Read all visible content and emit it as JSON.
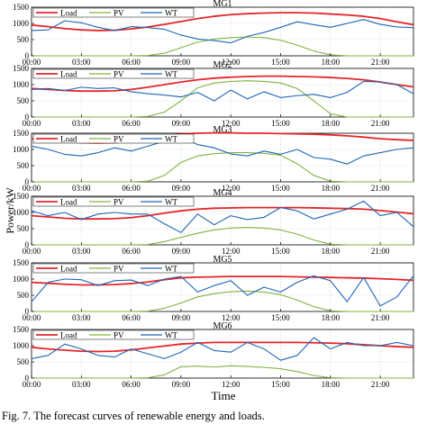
{
  "figure": {
    "ylabel": "Power/kW",
    "xlabel": "Time",
    "caption": "Fig. 7.  The forecast curves of renewable energy and loads."
  },
  "colors": {
    "Load": "#e3262a",
    "PV": "#7fb33f",
    "WT": "#1f65b5"
  },
  "chart_data": [
    {
      "type": "line",
      "title": "MG1",
      "x": [
        "00:00",
        "01:00",
        "02:00",
        "03:00",
        "04:00",
        "05:00",
        "06:00",
        "07:00",
        "08:00",
        "09:00",
        "10:00",
        "11:00",
        "12:00",
        "13:00",
        "14:00",
        "15:00",
        "16:00",
        "17:00",
        "18:00",
        "19:00",
        "20:00",
        "21:00",
        "22:00",
        "23:00"
      ],
      "xticks": [
        "00:00",
        "03:00",
        "06:00",
        "09:00",
        "12:00",
        "15:00",
        "18:00",
        "21:00"
      ],
      "ylim": [
        0,
        1500
      ],
      "yticks": [
        0,
        500,
        1000,
        1500
      ],
      "series": [
        {
          "name": "Load",
          "values": [
            950,
            900,
            840,
            800,
            780,
            790,
            830,
            890,
            970,
            1060,
            1150,
            1220,
            1270,
            1300,
            1320,
            1330,
            1330,
            1320,
            1290,
            1260,
            1220,
            1150,
            1050,
            960
          ]
        },
        {
          "name": "PV",
          "values": [
            0,
            0,
            0,
            0,
            0,
            0,
            0,
            10,
            80,
            250,
            420,
            520,
            560,
            580,
            560,
            480,
            330,
            150,
            30,
            0,
            0,
            0,
            0,
            0
          ]
        },
        {
          "name": "WT",
          "values": [
            780,
            800,
            1080,
            1020,
            880,
            780,
            900,
            870,
            820,
            640,
            520,
            470,
            400,
            600,
            720,
            880,
            1050,
            960,
            880,
            1000,
            1120,
            970,
            890,
            870
          ]
        }
      ],
      "grid": true,
      "legend": "top-left"
    },
    {
      "type": "line",
      "title": "MG2",
      "x": [
        "00:00",
        "01:00",
        "02:00",
        "03:00",
        "04:00",
        "05:00",
        "06:00",
        "07:00",
        "08:00",
        "09:00",
        "10:00",
        "11:00",
        "12:00",
        "13:00",
        "14:00",
        "15:00",
        "16:00",
        "17:00",
        "18:00",
        "19:00",
        "20:00",
        "21:00",
        "22:00",
        "23:00"
      ],
      "xticks": [
        "00:00",
        "03:00",
        "06:00",
        "09:00",
        "12:00",
        "15:00",
        "18:00",
        "21:00"
      ],
      "ylim": [
        0,
        1500
      ],
      "yticks": [
        0,
        500,
        1000,
        1500
      ],
      "series": [
        {
          "name": "Load",
          "values": [
            880,
            850,
            820,
            800,
            800,
            810,
            850,
            920,
            1000,
            1080,
            1150,
            1200,
            1230,
            1250,
            1260,
            1260,
            1250,
            1240,
            1220,
            1190,
            1150,
            1080,
            1000,
            930
          ]
        },
        {
          "name": "PV",
          "values": [
            0,
            0,
            0,
            0,
            0,
            0,
            0,
            20,
            150,
            500,
            900,
            1050,
            1100,
            1120,
            1100,
            1050,
            880,
            500,
            100,
            0,
            0,
            0,
            0,
            0
          ]
        },
        {
          "name": "WT",
          "values": [
            850,
            880,
            820,
            920,
            880,
            900,
            780,
            720,
            680,
            620,
            760,
            500,
            830,
            560,
            780,
            600,
            660,
            700,
            600,
            760,
            1100,
            1080,
            1000,
            720
          ]
        }
      ],
      "grid": true,
      "legend": "top-left"
    },
    {
      "type": "line",
      "title": "MG3",
      "x": [
        "00:00",
        "01:00",
        "02:00",
        "03:00",
        "04:00",
        "05:00",
        "06:00",
        "07:00",
        "08:00",
        "09:00",
        "10:00",
        "11:00",
        "12:00",
        "13:00",
        "14:00",
        "15:00",
        "16:00",
        "17:00",
        "18:00",
        "19:00",
        "20:00",
        "21:00",
        "22:00",
        "23:00"
      ],
      "xticks": [
        "00:00",
        "03:00",
        "06:00",
        "09:00",
        "12:00",
        "15:00",
        "18:00",
        "21:00"
      ],
      "ylim": [
        0,
        1500
      ],
      "yticks": [
        0,
        500,
        1000,
        1500
      ],
      "series": [
        {
          "name": "Load",
          "values": [
            1330,
            1280,
            1240,
            1210,
            1200,
            1210,
            1250,
            1320,
            1410,
            1480,
            1500,
            1510,
            1510,
            1500,
            1500,
            1490,
            1480,
            1470,
            1450,
            1420,
            1380,
            1330,
            1300,
            1280
          ]
        },
        {
          "name": "PV",
          "values": [
            0,
            0,
            0,
            0,
            0,
            0,
            0,
            20,
            200,
            600,
            800,
            870,
            900,
            900,
            880,
            820,
            560,
            200,
            20,
            0,
            0,
            0,
            0,
            0
          ]
        },
        {
          "name": "WT",
          "values": [
            1100,
            1000,
            850,
            800,
            900,
            1050,
            950,
            1100,
            1250,
            1400,
            1150,
            1050,
            860,
            800,
            950,
            850,
            1000,
            750,
            700,
            550,
            800,
            900,
            1000,
            1050
          ]
        }
      ],
      "grid": true,
      "legend": "top-left"
    },
    {
      "type": "line",
      "title": "MG4",
      "x": [
        "00:00",
        "01:00",
        "02:00",
        "03:00",
        "04:00",
        "05:00",
        "06:00",
        "07:00",
        "08:00",
        "09:00",
        "10:00",
        "11:00",
        "12:00",
        "13:00",
        "14:00",
        "15:00",
        "16:00",
        "17:00",
        "18:00",
        "19:00",
        "20:00",
        "21:00",
        "22:00",
        "23:00"
      ],
      "xticks": [
        "00:00",
        "03:00",
        "06:00",
        "09:00",
        "12:00",
        "15:00",
        "18:00",
        "21:00"
      ],
      "ylim": [
        0,
        1500
      ],
      "yticks": [
        0,
        500,
        1000,
        1500
      ],
      "series": [
        {
          "name": "Load",
          "values": [
            900,
            860,
            820,
            800,
            800,
            810,
            840,
            900,
            980,
            1050,
            1100,
            1130,
            1140,
            1150,
            1150,
            1150,
            1150,
            1140,
            1130,
            1120,
            1100,
            1060,
            1010,
            960
          ]
        },
        {
          "name": "PV",
          "values": [
            0,
            0,
            0,
            0,
            0,
            0,
            0,
            10,
            100,
            230,
            360,
            460,
            520,
            540,
            520,
            460,
            330,
            150,
            20,
            0,
            0,
            0,
            0,
            0
          ]
        },
        {
          "name": "WT",
          "values": [
            1050,
            900,
            1000,
            780,
            950,
            1000,
            950,
            950,
            650,
            380,
            950,
            620,
            900,
            780,
            850,
            1150,
            1050,
            800,
            950,
            1100,
            1350,
            900,
            1000,
            560
          ]
        }
      ],
      "grid": true,
      "legend": "top-left"
    },
    {
      "type": "line",
      "title": "MG5",
      "x": [
        "00:00",
        "01:00",
        "02:00",
        "03:00",
        "04:00",
        "05:00",
        "06:00",
        "07:00",
        "08:00",
        "09:00",
        "10:00",
        "11:00",
        "12:00",
        "13:00",
        "14:00",
        "15:00",
        "16:00",
        "17:00",
        "18:00",
        "19:00",
        "20:00",
        "21:00",
        "22:00",
        "23:00"
      ],
      "xticks": [
        "00:00",
        "03:00",
        "06:00",
        "09:00",
        "12:00",
        "15:00",
        "18:00",
        "21:00"
      ],
      "ylim": [
        0,
        1500
      ],
      "yticks": [
        0,
        500,
        1000,
        1500
      ],
      "series": [
        {
          "name": "Load",
          "values": [
            900,
            870,
            840,
            820,
            820,
            830,
            860,
            910,
            980,
            1040,
            1060,
            1070,
            1080,
            1080,
            1080,
            1080,
            1070,
            1060,
            1050,
            1040,
            1030,
            1010,
            990,
            960
          ]
        },
        {
          "name": "PV",
          "values": [
            0,
            0,
            0,
            0,
            0,
            0,
            0,
            10,
            100,
            260,
            450,
            550,
            610,
            630,
            600,
            520,
            350,
            150,
            20,
            0,
            0,
            0,
            0,
            0
          ]
        },
        {
          "name": "WT",
          "values": [
            300,
            900,
            1000,
            980,
            800,
            950,
            970,
            800,
            1000,
            1080,
            600,
            800,
            950,
            500,
            750,
            600,
            900,
            1100,
            950,
            300,
            1050,
            170,
            450,
            1100
          ]
        }
      ],
      "grid": true,
      "legend": "top-left"
    },
    {
      "type": "line",
      "title": "MG6",
      "x": [
        "00:00",
        "01:00",
        "02:00",
        "03:00",
        "04:00",
        "05:00",
        "06:00",
        "07:00",
        "08:00",
        "09:00",
        "10:00",
        "11:00",
        "12:00",
        "13:00",
        "14:00",
        "15:00",
        "16:00",
        "17:00",
        "18:00",
        "19:00",
        "20:00",
        "21:00",
        "22:00",
        "23:00"
      ],
      "xticks": [
        "00:00",
        "03:00",
        "06:00",
        "09:00",
        "12:00",
        "15:00",
        "18:00",
        "21:00"
      ],
      "ylim": [
        0,
        1500
      ],
      "yticks": [
        0,
        500,
        1000,
        1500
      ],
      "series": [
        {
          "name": "Load",
          "values": [
            950,
            900,
            860,
            830,
            820,
            830,
            870,
            930,
            990,
            1050,
            1080,
            1100,
            1100,
            1100,
            1100,
            1100,
            1100,
            1090,
            1080,
            1060,
            1030,
            1000,
            970,
            950
          ]
        },
        {
          "name": "PV",
          "values": [
            0,
            0,
            0,
            0,
            0,
            0,
            0,
            10,
            100,
            350,
            370,
            340,
            380,
            360,
            330,
            290,
            200,
            80,
            10,
            0,
            0,
            0,
            0,
            0
          ]
        },
        {
          "name": "WT",
          "values": [
            600,
            700,
            1050,
            900,
            700,
            650,
            900,
            750,
            600,
            800,
            1100,
            850,
            800,
            1100,
            900,
            550,
            700,
            1250,
            900,
            1100,
            1000,
            1000,
            1100,
            1000
          ]
        }
      ],
      "grid": true,
      "legend": "top-left"
    }
  ]
}
